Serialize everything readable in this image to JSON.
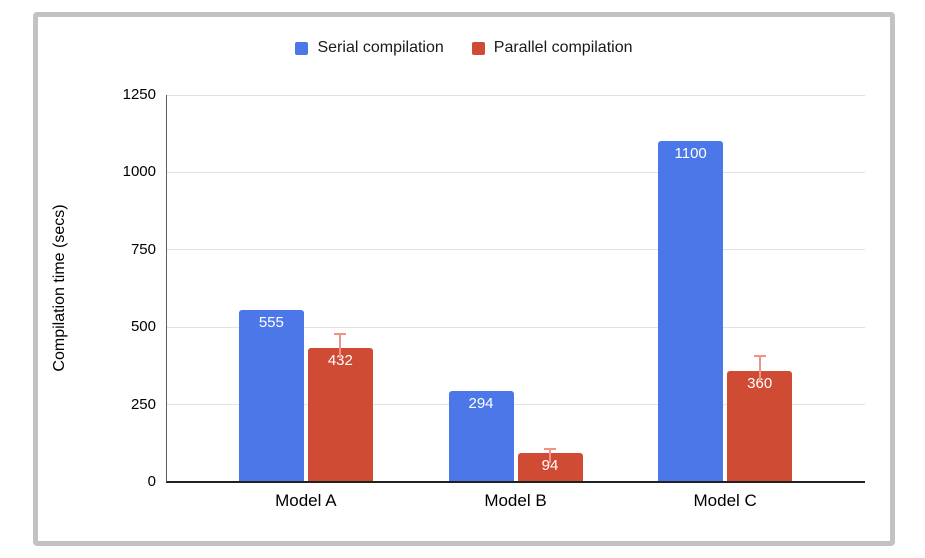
{
  "frame": {
    "border_color": "#c2c2c2",
    "background": "#ffffff"
  },
  "chart_data": {
    "type": "bar",
    "title": "",
    "categories": [
      "Model A",
      "Model B",
      "Model C"
    ],
    "series": [
      {
        "name": "Serial compilation",
        "color": "#4b77e8",
        "values": [
          555,
          294,
          1100
        ]
      },
      {
        "name": "Parallel compilation",
        "color": "#d04b33",
        "values": [
          432,
          94,
          360
        ],
        "error_up": [
          50,
          15,
          50
        ],
        "error_color": "#ee9486"
      }
    ],
    "bar_label_color": "#ffffff",
    "xlabel": "",
    "ylabel": "Compilation time (secs)",
    "ylim": [
      0,
      1250
    ],
    "yticks": [
      0,
      250,
      500,
      750,
      1000,
      1250
    ],
    "grid": true,
    "legend_position": "top",
    "gridline_color": "#e3e3e3",
    "baseline_color": "#212121",
    "y_axis_line_color": "#5c5c5c"
  }
}
